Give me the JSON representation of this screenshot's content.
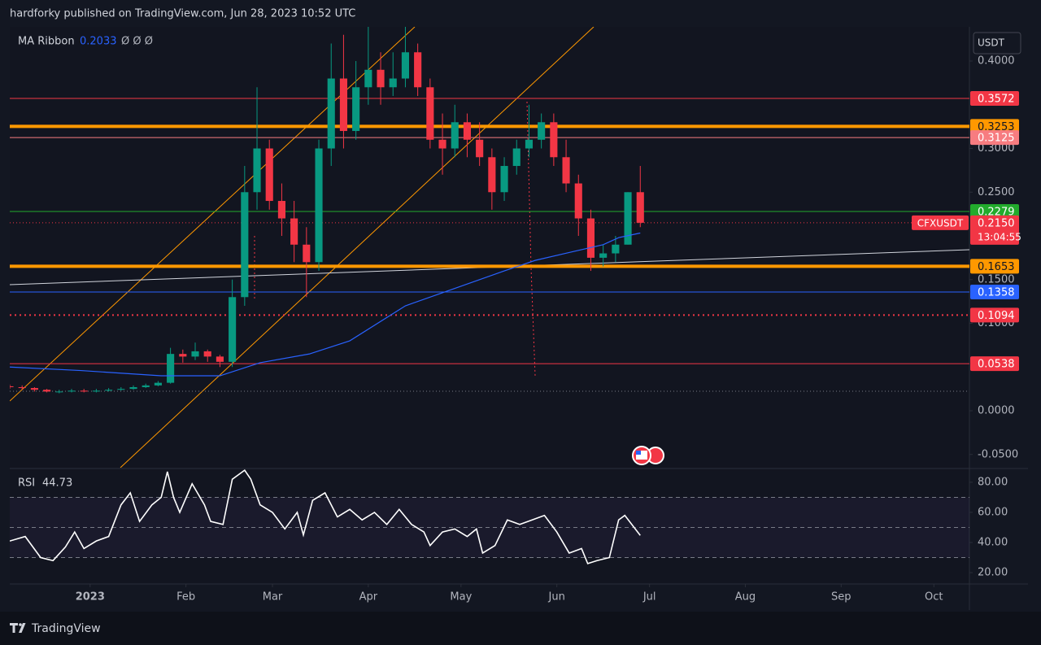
{
  "header": {
    "publisher": "hardforky published on TradingView.com, Jun 28, 2023 10:52 UTC"
  },
  "chart_data": {
    "type": "candlestick",
    "symbol": "CFXUSDT",
    "currency": "USDT",
    "xlim": [
      -26,
      284.5
    ],
    "xticks": [
      {
        "value": 0,
        "label": "2023"
      },
      {
        "value": 31,
        "label": "Feb"
      },
      {
        "value": 59,
        "label": "Mar"
      },
      {
        "value": 90,
        "label": "Apr"
      },
      {
        "value": 120,
        "label": "May"
      },
      {
        "value": 151,
        "label": "Jun"
      },
      {
        "value": 181,
        "label": "Jul"
      },
      {
        "value": 212,
        "label": "Aug"
      },
      {
        "value": 243,
        "label": "Sep"
      },
      {
        "value": 273,
        "label": "Oct"
      }
    ],
    "ylim": [
      -0.0651,
      0.4391
    ],
    "yticks": [
      {
        "value": 0.4,
        "label": "0.4000"
      },
      {
        "value": 0.3,
        "label": "0.3000"
      },
      {
        "value": 0.25,
        "label": "0.2500"
      },
      {
        "value": 0.15,
        "label": "0.1500"
      },
      {
        "value": 0.1,
        "label": "0.1000"
      },
      {
        "value": 0,
        "label": "0.0000"
      },
      {
        "value": -0.05,
        "label": "-0.0500"
      }
    ],
    "up_color": "#089981",
    "down_color": "#f23645",
    "x": [
      -26,
      -22,
      -18,
      -14,
      -10,
      -6,
      -2,
      2,
      6,
      10,
      14,
      18,
      22,
      26,
      30,
      34,
      38,
      42,
      46,
      50,
      54,
      58,
      62,
      66,
      70,
      74,
      78,
      82,
      86,
      90,
      94,
      98,
      102,
      106,
      110,
      114,
      118,
      122,
      126,
      130,
      134,
      138,
      142,
      146,
      150,
      154,
      158,
      162,
      166,
      170,
      174,
      178
    ],
    "open": [
      0.028,
      0.027,
      0.026,
      0.024,
      0.022,
      0.022,
      0.023,
      0.022,
      0.023,
      0.024,
      0.025,
      0.027,
      0.029,
      0.032,
      0.065,
      0.062,
      0.068,
      0.062,
      0.056,
      0.13,
      0.25,
      0.3,
      0.24,
      0.22,
      0.19,
      0.17,
      0.3,
      0.38,
      0.32,
      0.37,
      0.39,
      0.37,
      0.38,
      0.41,
      0.37,
      0.31,
      0.3,
      0.33,
      0.31,
      0.29,
      0.25,
      0.28,
      0.3,
      0.31,
      0.33,
      0.29,
      0.26,
      0.22,
      0.175,
      0.18,
      0.19,
      0.25
    ],
    "high": [
      0.03,
      0.029,
      0.027,
      0.025,
      0.024,
      0.025,
      0.025,
      0.025,
      0.026,
      0.027,
      0.029,
      0.031,
      0.034,
      0.072,
      0.07,
      0.078,
      0.07,
      0.064,
      0.15,
      0.28,
      0.37,
      0.31,
      0.26,
      0.24,
      0.21,
      0.31,
      0.42,
      0.43,
      0.4,
      0.44,
      0.41,
      0.41,
      0.44,
      0.42,
      0.38,
      0.34,
      0.35,
      0.34,
      0.33,
      0.3,
      0.29,
      0.31,
      0.35,
      0.34,
      0.34,
      0.31,
      0.27,
      0.23,
      0.19,
      0.2,
      0.25,
      0.28
    ],
    "low": [
      0.025,
      0.024,
      0.022,
      0.021,
      0.02,
      0.021,
      0.021,
      0.021,
      0.022,
      0.023,
      0.024,
      0.026,
      0.028,
      0.031,
      0.055,
      0.058,
      0.056,
      0.05,
      0.05,
      0.12,
      0.23,
      0.23,
      0.2,
      0.17,
      0.13,
      0.16,
      0.28,
      0.3,
      0.31,
      0.35,
      0.35,
      0.36,
      0.37,
      0.36,
      0.3,
      0.27,
      0.29,
      0.29,
      0.28,
      0.23,
      0.24,
      0.27,
      0.29,
      0.3,
      0.28,
      0.25,
      0.2,
      0.16,
      0.165,
      0.17,
      0.19,
      0.21
    ],
    "close": [
      0.027,
      0.026,
      0.024,
      0.022,
      0.022,
      0.023,
      0.022,
      0.023,
      0.024,
      0.025,
      0.027,
      0.029,
      0.032,
      0.065,
      0.062,
      0.068,
      0.062,
      0.056,
      0.13,
      0.25,
      0.3,
      0.24,
      0.22,
      0.19,
      0.17,
      0.3,
      0.38,
      0.32,
      0.37,
      0.39,
      0.37,
      0.38,
      0.41,
      0.37,
      0.31,
      0.3,
      0.33,
      0.31,
      0.29,
      0.25,
      0.28,
      0.3,
      0.31,
      0.33,
      0.29,
      0.26,
      0.22,
      0.175,
      0.18,
      0.19,
      0.25,
      0.215
    ],
    "last_price": {
      "value": 0.215,
      "label": "0.2150",
      "color": "#f23645"
    },
    "countdown": "13:04:55",
    "levels": [
      {
        "value": 0.3572,
        "color": "#f23645",
        "width": 1,
        "style": "solid",
        "text_color": "#ffffff"
      },
      {
        "value": 0.3253,
        "color": "#ff9800",
        "width": 4,
        "style": "solid",
        "text_color": "#131722"
      },
      {
        "value": 0.3125,
        "color": "#f77c80",
        "width": 1,
        "style": "solid",
        "text_color": "#ffffff"
      },
      {
        "value": 0.2279,
        "color": "#22ab2c",
        "width": 1,
        "style": "solid",
        "text_color": "#ffffff"
      },
      {
        "value": 0.1653,
        "color": "#ff9800",
        "width": 4,
        "style": "solid",
        "text_color": "#131722"
      },
      {
        "value": 0.1358,
        "color": "#2962ff",
        "width": 1,
        "style": "solid",
        "text_color": "#ffffff"
      },
      {
        "value": 0.1094,
        "color": "#f23645",
        "width": 2,
        "style": "dotted",
        "text_color": "#ffffff"
      },
      {
        "value": 0.0538,
        "color": "#f23645",
        "width": 1,
        "style": "solid",
        "text_color": "#ffffff"
      }
    ],
    "ma": {
      "name": "MA Ribbon",
      "color": "#2962ff",
      "extra": "Ø Ø Ø",
      "x": [
        -26,
        -3,
        23,
        42,
        55,
        71,
        84,
        102,
        118,
        134,
        144,
        155,
        166,
        171,
        178
      ],
      "values": [
        0.05,
        0.046,
        0.04,
        0.04,
        0.055,
        0.065,
        0.08,
        0.12,
        0.14,
        0.16,
        0.172,
        0.181,
        0.19,
        0.198,
        0.2033
      ]
    },
    "rsi": {
      "name": "RSI",
      "color": "#ffffff",
      "ylim": [
        13,
        88.6
      ],
      "yticks": [
        {
          "value": 80,
          "label": "80.00"
        },
        {
          "value": 60,
          "label": "60.00"
        },
        {
          "value": 40,
          "label": "40.00"
        },
        {
          "value": 20,
          "label": "20.00"
        }
      ],
      "band": [
        30,
        70
      ],
      "dashed": [
        70,
        50,
        30
      ],
      "x": [
        -26,
        -21,
        -16,
        -12,
        -8,
        -5,
        -2,
        2,
        6,
        10,
        13,
        16,
        20,
        23,
        25,
        27,
        29,
        33,
        37,
        39,
        43,
        46,
        50,
        52,
        55,
        59,
        63,
        67,
        69,
        72,
        76,
        80,
        84,
        88,
        92,
        96,
        100,
        104,
        108,
        110,
        114,
        118,
        122,
        125,
        127,
        131,
        135,
        139,
        143,
        147,
        151,
        155,
        159,
        161,
        164,
        168,
        171,
        173,
        178
      ],
      "values": [
        41,
        44,
        30,
        28,
        37,
        47,
        36,
        41,
        44,
        65,
        73,
        54,
        65,
        70,
        87,
        70,
        60,
        79,
        65,
        54,
        52,
        82,
        88,
        82,
        65,
        60,
        49,
        60,
        45,
        68,
        73,
        57,
        62,
        55,
        60,
        52,
        62,
        52,
        47,
        38,
        47,
        49,
        44,
        49,
        33,
        38,
        55,
        52,
        55,
        58,
        47,
        33,
        36,
        26,
        28,
        30,
        55,
        58,
        44.73
      ]
    }
  },
  "footer": {
    "brand": "TradingView"
  }
}
